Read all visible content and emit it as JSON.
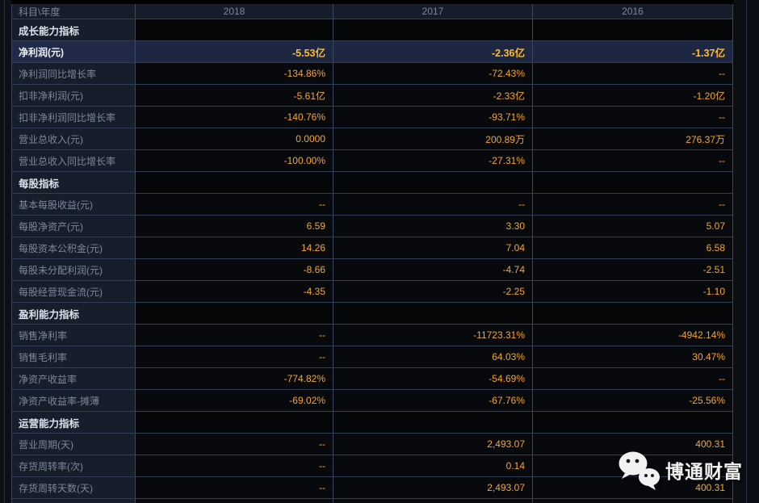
{
  "table": {
    "corner_label": "科目\\年度",
    "years": [
      "2018",
      "2017",
      "2016"
    ],
    "rows": [
      {
        "type": "section",
        "label": "成长能力指标",
        "values": [
          "",
          "",
          ""
        ]
      },
      {
        "type": "data",
        "label": "净利润(元)",
        "values": [
          "-5.53亿",
          "-2.36亿",
          "-1.37亿"
        ],
        "highlight": true,
        "bold": true
      },
      {
        "type": "data",
        "label": "净利润同比增长率",
        "values": [
          "-134.86%",
          "-72.43%",
          "--"
        ]
      },
      {
        "type": "data",
        "label": "扣非净利润(元)",
        "values": [
          "-5.61亿",
          "-2.33亿",
          "-1.20亿"
        ]
      },
      {
        "type": "data",
        "label": "扣非净利润同比增长率",
        "values": [
          "-140.76%",
          "-93.71%",
          "--"
        ]
      },
      {
        "type": "data",
        "label": "营业总收入(元)",
        "values": [
          "0.0000",
          "200.89万",
          "276.37万"
        ]
      },
      {
        "type": "data",
        "label": "营业总收入同比增长率",
        "values": [
          "-100.00%",
          "-27.31%",
          "--"
        ]
      },
      {
        "type": "section",
        "label": "每股指标",
        "values": [
          "",
          "",
          ""
        ]
      },
      {
        "type": "data",
        "label": "基本每股收益(元)",
        "values": [
          "--",
          "--",
          "--"
        ]
      },
      {
        "type": "data",
        "label": "每股净资产(元)",
        "values": [
          "6.59",
          "3.30",
          "5.07"
        ]
      },
      {
        "type": "data",
        "label": "每股资本公积金(元)",
        "values": [
          "14.26",
          "7.04",
          "6.58"
        ]
      },
      {
        "type": "data",
        "label": "每股未分配利润(元)",
        "values": [
          "-8.66",
          "-4.74",
          "-2.51"
        ]
      },
      {
        "type": "data",
        "label": "每股经营现金流(元)",
        "values": [
          "-4.35",
          "-2.25",
          "-1.10"
        ]
      },
      {
        "type": "section",
        "label": "盈利能力指标",
        "values": [
          "",
          "",
          ""
        ]
      },
      {
        "type": "data",
        "label": "销售净利率",
        "values": [
          "--",
          "-11723.31%",
          "-4942.14%"
        ]
      },
      {
        "type": "data",
        "label": "销售毛利率",
        "values": [
          "--",
          "64.03%",
          "30.47%"
        ]
      },
      {
        "type": "data",
        "label": "净资产收益率",
        "values": [
          "-774.82%",
          "-54.69%",
          "--"
        ]
      },
      {
        "type": "data",
        "label": "净资产收益率-摊薄",
        "values": [
          "-69.02%",
          "-67.76%",
          "-25.56%"
        ]
      },
      {
        "type": "section",
        "label": "运营能力指标",
        "values": [
          "",
          "",
          ""
        ]
      },
      {
        "type": "data",
        "label": "营业周期(天)",
        "values": [
          "--",
          "2,493.07",
          "400.31"
        ]
      },
      {
        "type": "data",
        "label": "存货周转率(次)",
        "values": [
          "--",
          "0.14",
          ""
        ]
      },
      {
        "type": "data",
        "label": "存货周转天数(天)",
        "values": [
          "--",
          "2,493.07",
          "400.31"
        ]
      }
    ]
  },
  "watermark": {
    "text": "博通财富",
    "icon": "wechat-icon"
  },
  "colors": {
    "value_orange": "#f4a72e",
    "bold_value_orange": "#ffba30",
    "highlight_row_bg": "#1d2742",
    "label_column_bg": "#161d2b",
    "data_cell_bg": "#07090d",
    "border": "#3a4763",
    "section_text": "#dce3ec",
    "label_text": "#7d8899"
  }
}
